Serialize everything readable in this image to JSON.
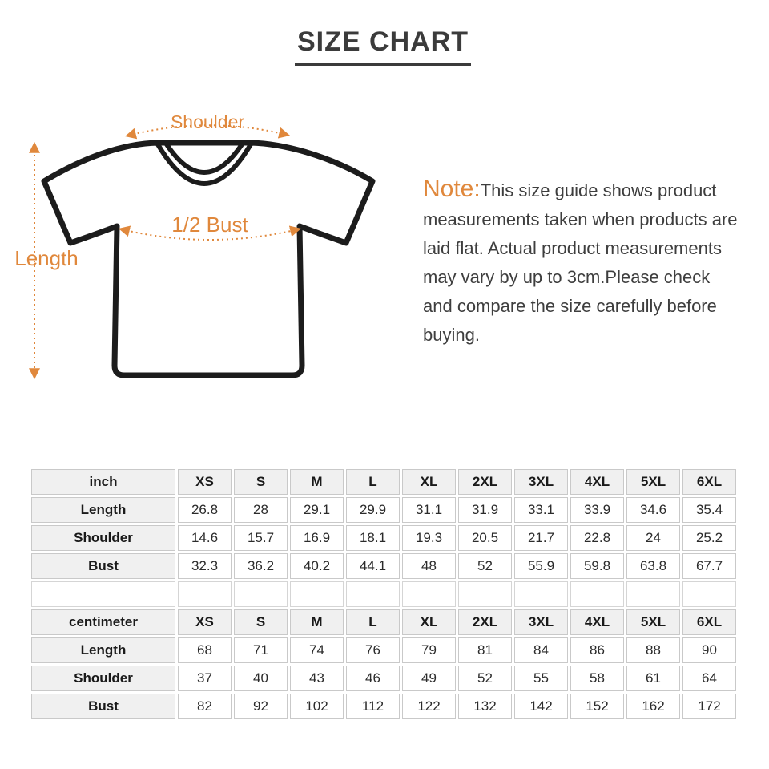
{
  "title": "SIZE CHART",
  "colors": {
    "accent": "#e0883c",
    "shirt_outline": "#1c1c1c",
    "title_text": "#3b3b3b",
    "table_border": "#c9c9c9",
    "table_header_bg": "#f0f0f0"
  },
  "diagram": {
    "shoulder_label": "Shoulder",
    "bust_label": "1/2 Bust",
    "length_label": "Length"
  },
  "note": {
    "prefix": "Note:",
    "body": "This size guide shows product measurements taken when products are laid flat. Actual product measurements may vary by up to 3cm.Please check and compare the size carefully before buying."
  },
  "size_tables": [
    {
      "unit": "inch",
      "sizes": [
        "XS",
        "S",
        "M",
        "L",
        "XL",
        "2XL",
        "3XL",
        "4XL",
        "5XL",
        "6XL"
      ],
      "rows": [
        {
          "label": "Length",
          "values": [
            "26.8",
            "28",
            "29.1",
            "29.9",
            "31.1",
            "31.9",
            "33.1",
            "33.9",
            "34.6",
            "35.4"
          ]
        },
        {
          "label": "Shoulder",
          "values": [
            "14.6",
            "15.7",
            "16.9",
            "18.1",
            "19.3",
            "20.5",
            "21.7",
            "22.8",
            "24",
            "25.2"
          ]
        },
        {
          "label": "Bust",
          "values": [
            "32.3",
            "36.2",
            "40.2",
            "44.1",
            "48",
            "52",
            "55.9",
            "59.8",
            "63.8",
            "67.7"
          ]
        }
      ]
    },
    {
      "unit": "centimeter",
      "sizes": [
        "XS",
        "S",
        "M",
        "L",
        "XL",
        "2XL",
        "3XL",
        "4XL",
        "5XL",
        "6XL"
      ],
      "rows": [
        {
          "label": "Length",
          "values": [
            "68",
            "71",
            "74",
            "76",
            "79",
            "81",
            "84",
            "86",
            "88",
            "90"
          ]
        },
        {
          "label": "Shoulder",
          "values": [
            "37",
            "40",
            "43",
            "46",
            "49",
            "52",
            "55",
            "58",
            "61",
            "64"
          ]
        },
        {
          "label": "Bust",
          "values": [
            "82",
            "92",
            "102",
            "112",
            "122",
            "132",
            "142",
            "152",
            "162",
            "172"
          ]
        }
      ]
    }
  ]
}
